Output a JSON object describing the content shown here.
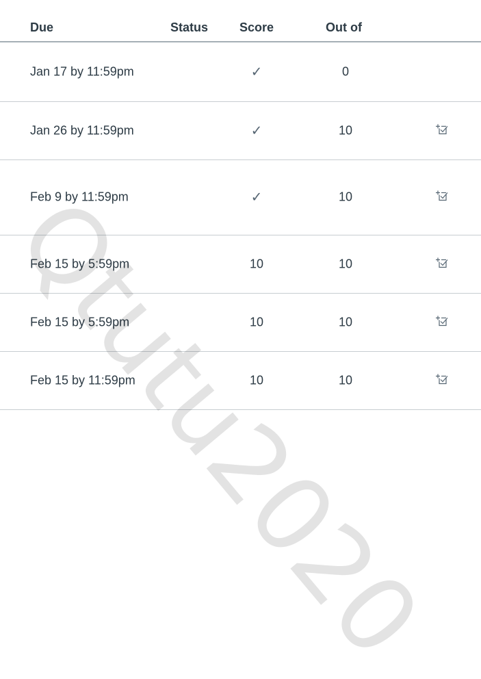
{
  "header": {
    "due": "Due",
    "status": "Status",
    "score": "Score",
    "out_of": "Out of"
  },
  "rows": [
    {
      "due": "Jan 17 by 11:59pm",
      "score": "✓",
      "out_of": "0",
      "icon": ""
    },
    {
      "due": "Jan 26 by 11:59pm",
      "score": "✓",
      "out_of": "10",
      "icon": "rubric-icon"
    },
    {
      "due": "Feb 9 by 11:59pm",
      "score": "✓",
      "out_of": "10",
      "icon": "rubric-icon"
    },
    {
      "due": "Feb 15 by 5:59pm",
      "score": "10",
      "out_of": "10",
      "icon": "rubric-icon"
    },
    {
      "due": "Feb 15 by 5:59pm",
      "score": "10",
      "out_of": "10",
      "icon": "rubric-icon"
    },
    {
      "due": "Feb 15 by 11:59pm",
      "score": "10",
      "out_of": "10",
      "icon": "rubric-icon"
    }
  ],
  "watermark": "Qtutu2020"
}
